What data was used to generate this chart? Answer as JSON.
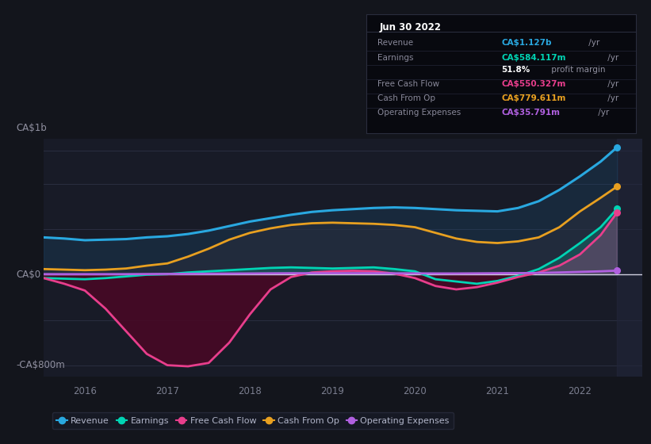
{
  "bg_color": "#13151c",
  "plot_bg_color": "#181b27",
  "y_label_top": "CA$1b",
  "y_label_bottom": "-CA$800m",
  "y_label_zero": "CA$0",
  "x_ticks": [
    2016,
    2017,
    2018,
    2019,
    2020,
    2021,
    2022
  ],
  "x_min": 2015.5,
  "x_max": 2022.75,
  "y_min": -900,
  "y_max": 1200,
  "highlight_x": 2022.45,
  "revenue_color": "#29a8e0",
  "earnings_color": "#00d4b4",
  "fcf_color": "#e83e8c",
  "cashfromop_color": "#e8a020",
  "opex_color": "#b060e0",
  "revenue": {
    "x": [
      2015.5,
      2015.75,
      2016.0,
      2016.25,
      2016.5,
      2016.75,
      2017.0,
      2017.25,
      2017.5,
      2017.75,
      2018.0,
      2018.25,
      2018.5,
      2018.75,
      2019.0,
      2019.25,
      2019.5,
      2019.75,
      2020.0,
      2020.25,
      2020.5,
      2020.75,
      2021.0,
      2021.25,
      2021.5,
      2021.75,
      2022.0,
      2022.25,
      2022.45
    ],
    "y": [
      330,
      320,
      305,
      310,
      315,
      330,
      340,
      360,
      390,
      430,
      470,
      500,
      530,
      555,
      570,
      580,
      590,
      595,
      590,
      580,
      570,
      565,
      560,
      590,
      650,
      750,
      870,
      1000,
      1127
    ]
  },
  "earnings": {
    "x": [
      2015.5,
      2015.75,
      2016.0,
      2016.25,
      2016.5,
      2016.75,
      2017.0,
      2017.25,
      2017.5,
      2017.75,
      2018.0,
      2018.25,
      2018.5,
      2018.75,
      2019.0,
      2019.25,
      2019.5,
      2019.75,
      2020.0,
      2020.25,
      2020.5,
      2020.75,
      2021.0,
      2021.25,
      2021.5,
      2021.75,
      2022.0,
      2022.25,
      2022.45
    ],
    "y": [
      -30,
      -35,
      -40,
      -30,
      -15,
      0,
      5,
      20,
      30,
      40,
      50,
      60,
      65,
      60,
      55,
      60,
      65,
      50,
      30,
      -40,
      -60,
      -80,
      -55,
      -10,
      50,
      150,
      280,
      420,
      584
    ]
  },
  "fcf": {
    "x": [
      2015.5,
      2015.75,
      2016.0,
      2016.25,
      2016.5,
      2016.75,
      2017.0,
      2017.25,
      2017.5,
      2017.75,
      2018.0,
      2018.25,
      2018.5,
      2018.75,
      2019.0,
      2019.25,
      2019.5,
      2019.75,
      2020.0,
      2020.25,
      2020.5,
      2020.75,
      2021.0,
      2021.25,
      2021.5,
      2021.75,
      2022.0,
      2022.25,
      2022.45
    ],
    "y": [
      -30,
      -80,
      -140,
      -300,
      -500,
      -700,
      -800,
      -810,
      -780,
      -600,
      -350,
      -130,
      -20,
      20,
      30,
      35,
      30,
      10,
      -30,
      -100,
      -130,
      -110,
      -70,
      -20,
      20,
      80,
      180,
      350,
      550
    ]
  },
  "cashfromop": {
    "x": [
      2015.5,
      2015.75,
      2016.0,
      2016.25,
      2016.5,
      2016.75,
      2017.0,
      2017.25,
      2017.5,
      2017.75,
      2018.0,
      2018.25,
      2018.5,
      2018.75,
      2019.0,
      2019.25,
      2019.5,
      2019.75,
      2020.0,
      2020.25,
      2020.5,
      2020.75,
      2021.0,
      2021.25,
      2021.5,
      2021.75,
      2022.0,
      2022.25,
      2022.45
    ],
    "y": [
      50,
      45,
      40,
      45,
      55,
      80,
      100,
      160,
      230,
      310,
      370,
      410,
      440,
      455,
      460,
      455,
      450,
      440,
      420,
      370,
      320,
      290,
      280,
      295,
      330,
      420,
      560,
      680,
      780
    ]
  },
  "opex": {
    "x": [
      2015.5,
      2015.75,
      2016.0,
      2016.25,
      2016.5,
      2016.75,
      2017.0,
      2017.25,
      2017.5,
      2017.75,
      2018.0,
      2018.25,
      2018.5,
      2018.75,
      2019.0,
      2019.25,
      2019.5,
      2019.75,
      2020.0,
      2020.25,
      2020.5,
      2020.75,
      2021.0,
      2021.25,
      2021.5,
      2021.75,
      2022.0,
      2022.25,
      2022.45
    ],
    "y": [
      5,
      5,
      5,
      5,
      5,
      6,
      7,
      8,
      9,
      10,
      11,
      12,
      13,
      13,
      13,
      13,
      13,
      12,
      12,
      11,
      11,
      12,
      13,
      14,
      16,
      20,
      25,
      30,
      36
    ]
  },
  "tooltip": {
    "date": "Jun 30 2022",
    "rows": [
      {
        "label": "Revenue",
        "value": "CA$1.127b",
        "value_color": "#29a8e0",
        "unit": " /yr"
      },
      {
        "label": "Earnings",
        "value": "CA$584.117m",
        "value_color": "#00d4b4",
        "unit": " /yr"
      },
      {
        "label": "",
        "value": "51.8%",
        "value_color": "#ffffff",
        "unit": " profit margin"
      },
      {
        "label": "Free Cash Flow",
        "value": "CA$550.327m",
        "value_color": "#e83e8c",
        "unit": " /yr"
      },
      {
        "label": "Cash From Op",
        "value": "CA$779.611m",
        "value_color": "#e8a020",
        "unit": " /yr"
      },
      {
        "label": "Operating Expenses",
        "value": "CA$35.791m",
        "value_color": "#b060e0",
        "unit": " /yr"
      }
    ]
  },
  "legend_items": [
    {
      "label": "Revenue",
      "color": "#29a8e0"
    },
    {
      "label": "Earnings",
      "color": "#00d4b4"
    },
    {
      "label": "Free Cash Flow",
      "color": "#e83e8c"
    },
    {
      "label": "Cash From Op",
      "color": "#e8a020"
    },
    {
      "label": "Operating Expenses",
      "color": "#b060e0"
    }
  ]
}
